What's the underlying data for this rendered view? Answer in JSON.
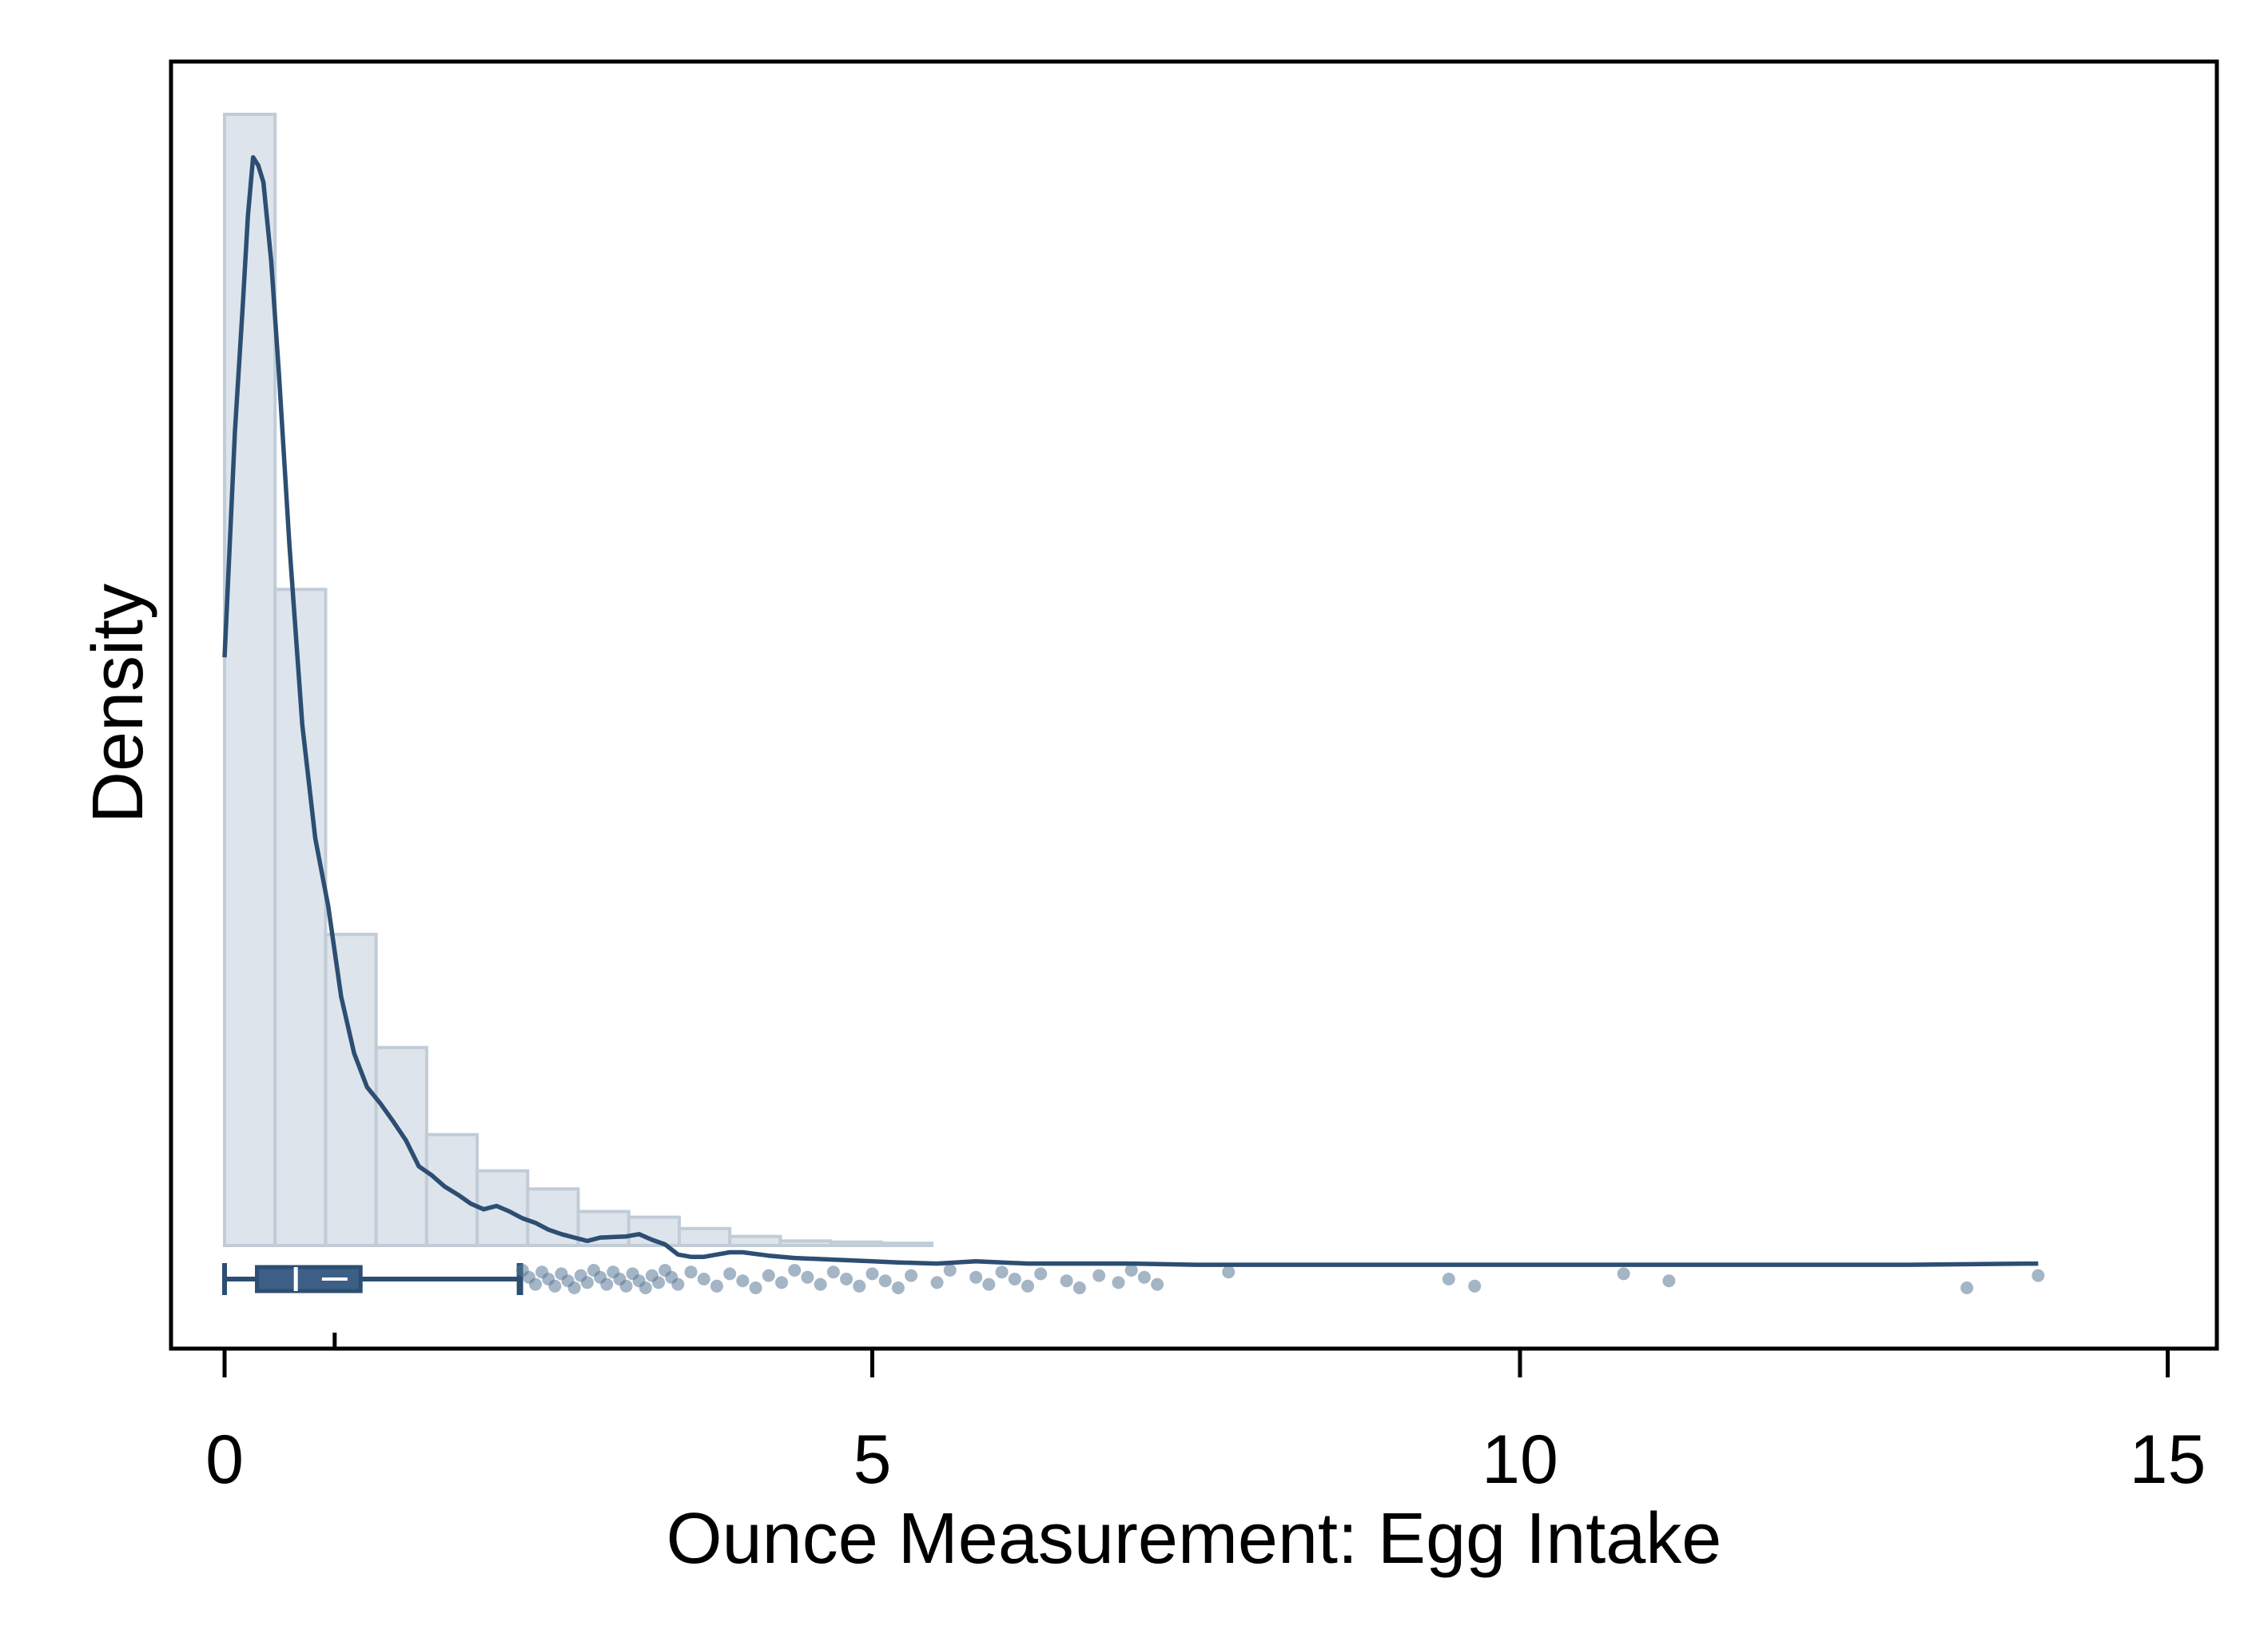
{
  "chart_data": {
    "type": "histogram",
    "xlabel": "Ounce Measurement: Egg Intake",
    "ylabel": "Density",
    "xlim": [
      -0.4,
      15.4
    ],
    "xticks": [
      0,
      5,
      10,
      15
    ],
    "ylim": [
      0,
      1.0
    ],
    "y_tick_labels_shown": false,
    "grid": false,
    "legend": "none",
    "bin_width": 0.39,
    "bin_start": 0,
    "histogram_density": [
      1.0,
      0.58,
      0.275,
      0.175,
      0.098,
      0.066,
      0.05,
      0.03,
      0.025,
      0.015,
      0.008,
      0.004,
      0.003,
      0.002
    ],
    "kde": {
      "x": [
        0.0,
        0.08,
        0.14,
        0.18,
        0.22,
        0.26,
        0.3,
        0.36,
        0.42,
        0.5,
        0.6,
        0.7,
        0.8,
        0.9,
        1.0,
        1.1,
        1.2,
        1.3,
        1.4,
        1.5,
        1.6,
        1.7,
        1.8,
        1.9,
        2.0,
        2.1,
        2.2,
        2.3,
        2.4,
        2.5,
        2.6,
        2.7,
        2.8,
        2.9,
        3.0,
        3.1,
        3.2,
        3.3,
        3.4,
        3.5,
        3.6,
        3.7,
        3.8,
        3.9,
        4.0,
        4.2,
        4.4,
        4.6,
        4.8,
        5.0,
        5.2,
        5.5,
        5.8,
        6.2,
        6.6,
        7.0,
        7.5,
        8.0,
        9.0,
        10.0,
        11.0,
        12.0,
        13.0,
        14.0
      ],
      "y": [
        0.52,
        0.72,
        0.83,
        0.91,
        0.962,
        0.955,
        0.94,
        0.87,
        0.77,
        0.62,
        0.46,
        0.36,
        0.3,
        0.22,
        0.17,
        0.14,
        0.126,
        0.11,
        0.093,
        0.07,
        0.062,
        0.052,
        0.045,
        0.037,
        0.032,
        0.035,
        0.03,
        0.024,
        0.02,
        0.014,
        0.01,
        0.007,
        0.004,
        0.007,
        0.0075,
        0.008,
        0.01,
        0.005,
        0.001,
        -0.008,
        -0.01,
        -0.01,
        -0.008,
        -0.006,
        -0.006,
        -0.009,
        -0.011,
        -0.012,
        -0.013,
        -0.014,
        -0.015,
        -0.016,
        -0.014,
        -0.016,
        -0.016,
        -0.016,
        -0.017,
        -0.017,
        -0.017,
        -0.017,
        -0.017,
        -0.017,
        -0.017,
        -0.016
      ]
    },
    "boxplot": {
      "min": 0.0,
      "q1": 0.25,
      "median": 0.55,
      "q3": 1.05,
      "whisker_high": 2.28,
      "marker_at": 0.85,
      "outliers": [
        2.3,
        2.35,
        2.4,
        2.45,
        2.5,
        2.55,
        2.6,
        2.65,
        2.7,
        2.75,
        2.8,
        2.85,
        2.9,
        2.95,
        3.0,
        3.05,
        3.1,
        3.15,
        3.2,
        3.25,
        3.3,
        3.35,
        3.4,
        3.45,
        3.5,
        3.6,
        3.7,
        3.8,
        3.9,
        4.0,
        4.1,
        4.2,
        4.3,
        4.4,
        4.5,
        4.6,
        4.7,
        4.8,
        4.9,
        5.0,
        5.1,
        5.2,
        5.3,
        5.5,
        5.6,
        5.8,
        5.9,
        6.0,
        6.1,
        6.2,
        6.3,
        6.5,
        6.6,
        6.75,
        6.9,
        7.0,
        7.1,
        7.2,
        7.75,
        9.45,
        9.65,
        10.8,
        11.15,
        13.45,
        14.0
      ]
    },
    "colors": {
      "line": "#2c4e72",
      "bar_fill": "#dde4eb",
      "bar_edge": "#c1ccd7",
      "box_fill": "#3d5f85",
      "points": "#5a7896"
    }
  }
}
